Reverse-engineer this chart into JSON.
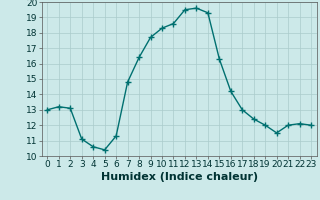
{
  "x": [
    0,
    1,
    2,
    3,
    4,
    5,
    6,
    7,
    8,
    9,
    10,
    11,
    12,
    13,
    14,
    15,
    16,
    17,
    18,
    19,
    20,
    21,
    22,
    23
  ],
  "y": [
    13.0,
    13.2,
    13.1,
    11.1,
    10.6,
    10.4,
    11.3,
    14.8,
    16.4,
    17.7,
    18.3,
    18.6,
    19.5,
    19.6,
    19.3,
    16.3,
    14.2,
    13.0,
    12.4,
    12.0,
    11.5,
    12.0,
    12.1,
    12.0
  ],
  "line_color": "#007070",
  "marker": "+",
  "marker_size": 4,
  "bg_color": "#cce9e9",
  "grid_color": "#aacccc",
  "xlabel": "Humidex (Indice chaleur)",
  "ylim": [
    10,
    20
  ],
  "xlim": [
    -0.5,
    23.5
  ],
  "yticks": [
    10,
    11,
    12,
    13,
    14,
    15,
    16,
    17,
    18,
    19,
    20
  ],
  "xticks": [
    0,
    1,
    2,
    3,
    4,
    5,
    6,
    7,
    8,
    9,
    10,
    11,
    12,
    13,
    14,
    15,
    16,
    17,
    18,
    19,
    20,
    21,
    22,
    23
  ],
  "tick_fontsize": 6.5,
  "xlabel_fontsize": 8,
  "line_width": 1.0
}
